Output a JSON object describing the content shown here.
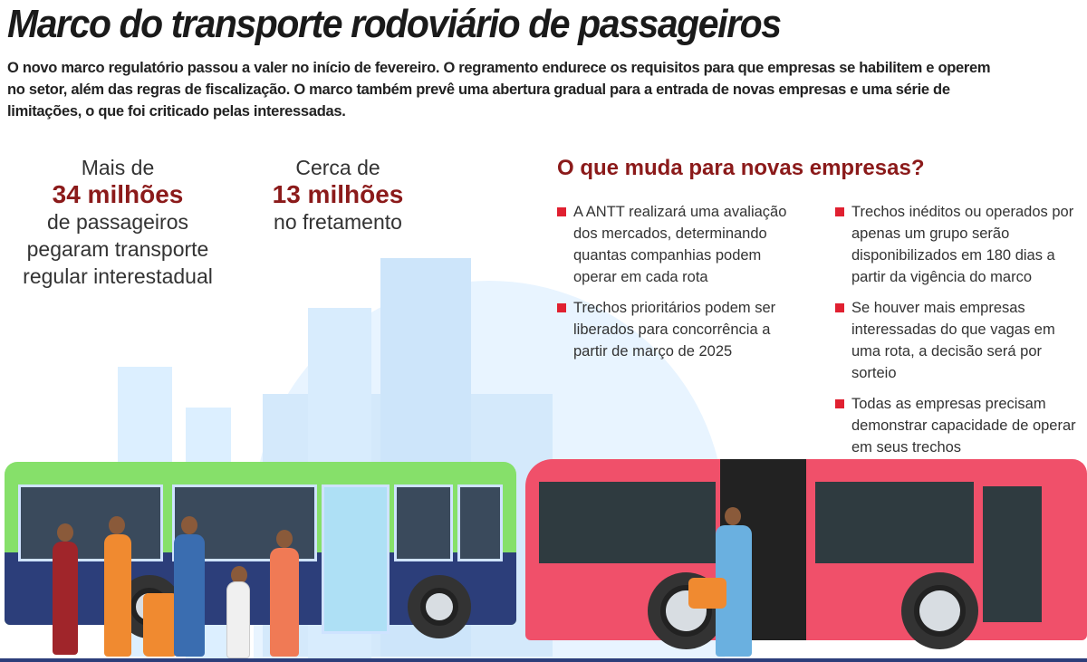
{
  "title": "Marco do transporte rodoviário de passageiros",
  "intro": "O novo marco regulatório passou a valer no início de fevereiro. O regramento endurece os requisitos para que empresas se habilitem e operem no setor, além das regras de fiscalização. O marco também prevê uma abertura gradual para a entrada de novas empresas e uma série de limitações, o que foi criticado pelas interessadas.",
  "stats": [
    {
      "prefix": "Mais de",
      "value": "34 milhões",
      "line1": "de passageiros",
      "line2": "pegaram transporte",
      "line3": "regular interestadual"
    },
    {
      "prefix": "Cerca de",
      "value": "13 milhões",
      "line1": "no fretamento"
    }
  ],
  "changes": {
    "heading": "O que muda para novas empresas?",
    "left": [
      "A ANTT realizará uma avaliação dos mercados, determinando quantas companhias podem operar em cada rota",
      "Trechos prioritários podem ser liberados para concorrência a partir de março de 2025"
    ],
    "right": [
      "Trechos inéditos ou operados por apenas um grupo serão disponibilizados em 180 dias a partir da vigência do marco",
      "Se houver mais empresas interessadas do que vagas em uma rota, a decisão será por sorteio",
      "Todas as empresas precisam demonstrar capacidade de operar em seus trechos"
    ]
  },
  "colors": {
    "accent": "#8b1a1a",
    "bullet": "#e02030",
    "green_bus": "#86e06a",
    "red_bus": "#f0506a",
    "sky": "#dcefff"
  },
  "illustration": {
    "icons": [
      "green-bus",
      "red-bus",
      "city-skyline",
      "passengers"
    ]
  }
}
